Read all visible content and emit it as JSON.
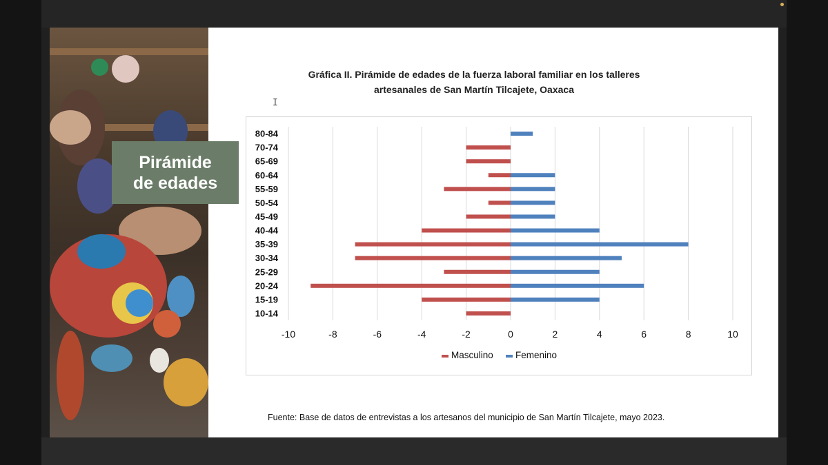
{
  "slide": {
    "badge_line1": "Pirámide",
    "badge_line2": "de edades",
    "chart_title_line1": "Gráfica II. Pirámide de edades de la fuerza laboral familiar en los talleres",
    "chart_title_line2": "artesanales  de San Martín Tilcajete, Oaxaca",
    "source": "Fuente: Base de datos de entrevistas a los artesanos del municipio de San Martín Tilcajete, mayo 2023."
  },
  "chart_data": {
    "type": "bar",
    "orientation": "horizontal",
    "title": "Gráfica II. Pirámide de edades de la fuerza laboral familiar en los talleres artesanales  de San Martín Tilcajete, Oaxaca",
    "categories": [
      "80-84",
      "70-74",
      "65-69",
      "60-64",
      "55-59",
      "50-54",
      "45-49",
      "40-44",
      "35-39",
      "30-34",
      "25-29",
      "20-24",
      "15-19",
      "10-14"
    ],
    "series": [
      {
        "name": "Masculino",
        "color": "#c0504d",
        "values": [
          0,
          -2,
          -2,
          -1,
          -3,
          -1,
          -2,
          -4,
          -7,
          -7,
          -3,
          -9,
          -4,
          -2
        ]
      },
      {
        "name": "Femenino",
        "color": "#4f81bd",
        "values": [
          1,
          0,
          0,
          2,
          2,
          2,
          2,
          4,
          8,
          5,
          4,
          6,
          4,
          0
        ]
      }
    ],
    "xlim": [
      -10,
      10
    ],
    "xticks": [
      "-10",
      "-8",
      "-6",
      "-4",
      "-2",
      "0",
      "2",
      "4",
      "6",
      "8",
      "10"
    ],
    "grid": "vertical",
    "legend": "bottom-center"
  }
}
